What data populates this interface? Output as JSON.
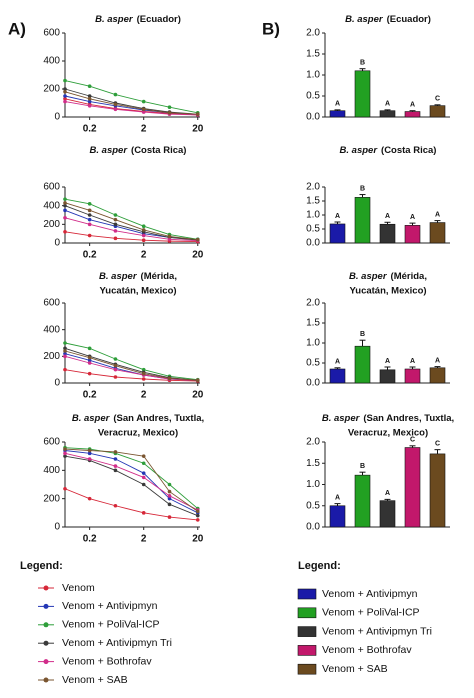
{
  "panel_labels": [
    "A)",
    "B)"
  ],
  "line_legend": {
    "title": "Legend:",
    "items": [
      {
        "name": "Venom",
        "color": "#d62738"
      },
      {
        "name": "Venom + Antivipmyn",
        "color": "#2437b5"
      },
      {
        "name": "Venom + PoliVal-ICP",
        "color": "#2e9e3a"
      },
      {
        "name": "Venom + Antivipmyn Tri",
        "color": "#3a3a3a"
      },
      {
        "name": "Venom + Bothrofav",
        "color": "#d12d8a"
      },
      {
        "name": "Venom + SAB",
        "color": "#7a5530"
      }
    ]
  },
  "bar_legend": {
    "title": "Legend:",
    "items": [
      {
        "name": "Venom + Antivipmyn",
        "color": "#1a1aa8"
      },
      {
        "name": "Venom + PoliVal-ICP",
        "color": "#22a022"
      },
      {
        "name": "Venom + Antivipmyn Tri",
        "color": "#333333"
      },
      {
        "name": "Venom + Bothrofav",
        "color": "#c2186b"
      },
      {
        "name": "Venom + SAB",
        "color": "#6b4a1f"
      }
    ]
  },
  "chart_data": [
    {
      "type": "line",
      "title": {
        "italic": "B. asper",
        "rest": [
          "(Ecuador)"
        ]
      },
      "x": [
        0.07,
        0.2,
        0.6,
        2,
        6,
        20
      ],
      "xlim": [
        0.07,
        22
      ],
      "xticks": [
        0.2,
        2,
        20
      ],
      "log_x": true,
      "ylim": [
        0,
        600
      ],
      "yticks": [
        0,
        200,
        400,
        600
      ],
      "series": [
        {
          "values": [
            130,
            90,
            60,
            40,
            25,
            15
          ]
        },
        {
          "values": [
            150,
            110,
            80,
            50,
            30,
            20
          ]
        },
        {
          "values": [
            260,
            220,
            160,
            110,
            70,
            30
          ]
        },
        {
          "values": [
            200,
            150,
            100,
            60,
            35,
            20
          ]
        },
        {
          "values": [
            110,
            80,
            55,
            35,
            20,
            15
          ]
        },
        {
          "values": [
            180,
            130,
            90,
            55,
            30,
            20
          ]
        }
      ]
    },
    {
      "type": "line",
      "title": {
        "italic": "B. asper",
        "rest": [
          "(Costa Rica)"
        ]
      },
      "x": [
        0.07,
        0.2,
        0.6,
        2,
        6,
        20
      ],
      "xlim": [
        0.07,
        22
      ],
      "xticks": [
        0.2,
        2,
        20
      ],
      "log_x": true,
      "ylim": [
        0,
        600
      ],
      "yticks": [
        0,
        200,
        400,
        600
      ],
      "series": [
        {
          "values": [
            120,
            80,
            50,
            30,
            20,
            15
          ]
        },
        {
          "values": [
            350,
            250,
            180,
            100,
            60,
            40
          ]
        },
        {
          "values": [
            470,
            420,
            300,
            180,
            90,
            40
          ]
        },
        {
          "values": [
            400,
            300,
            200,
            120,
            60,
            30
          ]
        },
        {
          "values": [
            270,
            200,
            130,
            80,
            40,
            25
          ]
        },
        {
          "values": [
            430,
            350,
            250,
            140,
            70,
            35
          ]
        }
      ]
    },
    {
      "type": "line",
      "title": {
        "italic": "B. asper",
        "rest": [
          "(Mérida,",
          "Yucatán, Mexico)"
        ]
      },
      "x": [
        0.07,
        0.2,
        0.6,
        2,
        6,
        20
      ],
      "xlim": [
        0.07,
        22
      ],
      "xticks": [
        0.2,
        2,
        20
      ],
      "log_x": true,
      "ylim": [
        0,
        600
      ],
      "yticks": [
        0,
        200,
        400,
        600
      ],
      "series": [
        {
          "values": [
            100,
            70,
            45,
            30,
            20,
            15
          ]
        },
        {
          "values": [
            220,
            170,
            110,
            60,
            30,
            20
          ]
        },
        {
          "values": [
            300,
            260,
            180,
            100,
            50,
            25
          ]
        },
        {
          "values": [
            260,
            200,
            140,
            80,
            40,
            20
          ]
        },
        {
          "values": [
            200,
            150,
            100,
            60,
            30,
            20
          ]
        },
        {
          "values": [
            240,
            190,
            130,
            70,
            35,
            20
          ]
        }
      ]
    },
    {
      "type": "line",
      "title": {
        "italic": "B. asper",
        "rest": [
          "(San Andres, Tuxtla,",
          "Veracruz, Mexico)"
        ]
      },
      "x": [
        0.07,
        0.2,
        0.6,
        2,
        6,
        20
      ],
      "xlim": [
        0.07,
        22
      ],
      "xticks": [
        0.2,
        2,
        20
      ],
      "log_x": true,
      "ylim": [
        0,
        600
      ],
      "yticks": [
        0,
        200,
        400,
        600
      ],
      "series": [
        {
          "values": [
            270,
            200,
            150,
            100,
            70,
            50
          ]
        },
        {
          "values": [
            540,
            520,
            480,
            380,
            200,
            100
          ]
        },
        {
          "values": [
            560,
            550,
            520,
            450,
            300,
            130
          ]
        },
        {
          "values": [
            500,
            470,
            400,
            300,
            160,
            80
          ]
        },
        {
          "values": [
            520,
            480,
            430,
            350,
            220,
            120
          ]
        },
        {
          "values": [
            550,
            540,
            530,
            500,
            250,
            110
          ]
        }
      ]
    },
    {
      "type": "bar",
      "title": {
        "italic": "B. asper",
        "rest": [
          "(Ecuador)"
        ]
      },
      "ylim": [
        0,
        2
      ],
      "yticks": [
        {
          "value": 0,
          "label": "0.0"
        },
        0.5,
        {
          "value": 1,
          "label": "1.0"
        },
        1.5,
        {
          "value": 2,
          "label": "2.0"
        }
      ],
      "values": [
        0.15,
        1.1,
        0.15,
        0.13,
        0.27
      ],
      "errors": [
        0.02,
        0.05,
        0.02,
        0.02,
        0.02
      ],
      "letters": [
        "A",
        "B",
        "A",
        "A",
        "C"
      ]
    },
    {
      "type": "bar",
      "title": {
        "italic": "B. asper",
        "rest": [
          "(Costa Rica)"
        ]
      },
      "ylim": [
        0,
        2
      ],
      "yticks": [
        {
          "value": 0,
          "label": "0.0"
        },
        0.5,
        {
          "value": 1,
          "label": "1.0"
        },
        1.5,
        {
          "value": 2,
          "label": "2.0"
        }
      ],
      "values": [
        0.68,
        1.63,
        0.67,
        0.63,
        0.73
      ],
      "errors": [
        0.07,
        0.1,
        0.07,
        0.08,
        0.07
      ],
      "letters": [
        "A",
        "B",
        "A",
        "A",
        "A"
      ]
    },
    {
      "type": "bar",
      "title": {
        "italic": "B. asper",
        "rest": [
          "(Mérida,",
          "Yucatán, Mexico)"
        ]
      },
      "ylim": [
        0,
        2
      ],
      "yticks": [
        {
          "value": 0,
          "label": "0.0"
        },
        0.5,
        {
          "value": 1,
          "label": "1.0"
        },
        1.5,
        {
          "value": 2,
          "label": "2.0"
        }
      ],
      "values": [
        0.35,
        0.92,
        0.33,
        0.35,
        0.38
      ],
      "errors": [
        0.03,
        0.15,
        0.07,
        0.05,
        0.03
      ],
      "letters": [
        "A",
        "B",
        "A",
        "A",
        "A"
      ]
    },
    {
      "type": "bar",
      "title": {
        "italic": "B. asper",
        "rest": [
          "(San Andres, Tuxtla,",
          "Veracruz, Mexico)"
        ]
      },
      "ylim": [
        0,
        2
      ],
      "yticks": [
        {
          "value": 0,
          "label": "0.0"
        },
        0.5,
        {
          "value": 1,
          "label": "1.0"
        },
        1.5,
        {
          "value": 2,
          "label": "2.0"
        }
      ],
      "values": [
        0.5,
        1.22,
        0.62,
        1.87,
        1.72
      ],
      "errors": [
        0.05,
        0.07,
        0.03,
        0.04,
        0.1
      ],
      "letters": [
        "A",
        "B",
        "A",
        "C",
        "C"
      ]
    }
  ]
}
